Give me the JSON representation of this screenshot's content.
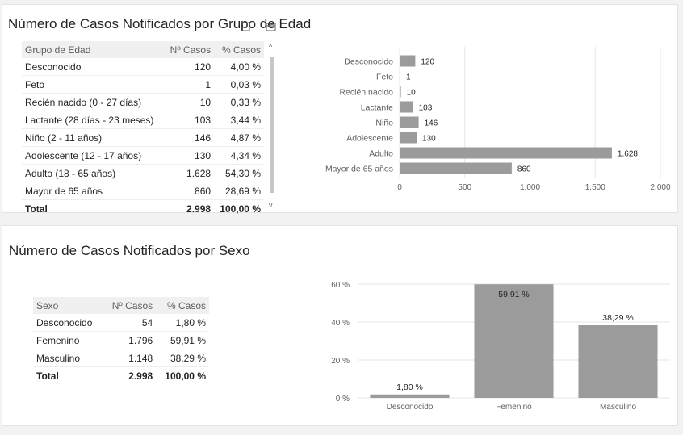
{
  "age_section": {
    "title": "Número de Casos Notificados por Grupo de Edad",
    "table": {
      "headers": [
        "Grupo de Edad",
        "Nº Casos",
        "% Casos"
      ],
      "rows": [
        [
          "Desconocido",
          "120",
          "4,00 %"
        ],
        [
          "Feto",
          "1",
          "0,03 %"
        ],
        [
          "Recién nacido (0 - 27 días)",
          "10",
          "0,33 %"
        ],
        [
          "Lactante (28 días - 23 meses)",
          "103",
          "3,44 %"
        ],
        [
          "Niño (2 - 11 años)",
          "146",
          "4,87 %"
        ],
        [
          "Adolescente (12 - 17 años)",
          "130",
          "4,34 %"
        ],
        [
          "Adulto (18 - 65 años)",
          "1.628",
          "54,30 %"
        ],
        [
          "Mayor de 65 años",
          "860",
          "28,69 %"
        ]
      ],
      "total": [
        "Total",
        "2.998",
        "100,00 %"
      ]
    }
  },
  "sex_section": {
    "title": "Número de Casos Notificados por Sexo",
    "table": {
      "headers": [
        "Sexo",
        "Nº Casos",
        "% Casos"
      ],
      "rows": [
        [
          "Desconocido",
          "54",
          "1,80 %"
        ],
        [
          "Femenino",
          "1.796",
          "59,91 %"
        ],
        [
          "Masculino",
          "1.148",
          "38,29 %"
        ]
      ],
      "total": [
        "Total",
        "2.998",
        "100,00 %"
      ]
    }
  },
  "colors": {
    "bar": "#9b9b9b",
    "grid": "#e6e6e6",
    "accent_line": "#4e9bb5",
    "header_bg": "#f0f0f0"
  },
  "icons": [
    "focus-mode-icon",
    "more-options-icon",
    "scroll-up-icon",
    "scroll-down-icon"
  ],
  "chart_data": [
    {
      "type": "bar",
      "orientation": "horizontal",
      "categories": [
        "Desconocido",
        "Feto",
        "Recién nacido",
        "Lactante",
        "Niño",
        "Adolescente",
        "Adulto",
        "Mayor de 65 años"
      ],
      "values": [
        120,
        1,
        10,
        103,
        146,
        130,
        1628,
        860
      ],
      "data_labels": [
        "120",
        "1",
        "10",
        "103",
        "146",
        "130",
        "1.628",
        "860"
      ],
      "xlim": [
        0,
        2000
      ],
      "xticks": [
        0,
        500,
        1000,
        1500,
        2000
      ],
      "xtick_labels": [
        "0",
        "500",
        "1.000",
        "1.500",
        "2.000"
      ],
      "grid": true
    },
    {
      "type": "bar",
      "orientation": "vertical",
      "categories": [
        "Desconocido",
        "Femenino",
        "Masculino"
      ],
      "values": [
        1.8,
        59.91,
        38.29
      ],
      "data_labels": [
        "1,80 %",
        "59,91 %",
        "38,29 %"
      ],
      "ylim": [
        0,
        60
      ],
      "yticks": [
        0,
        20,
        40,
        60
      ],
      "ytick_labels": [
        "0 %",
        "20 %",
        "40 %",
        "60 %"
      ],
      "grid": true
    }
  ]
}
